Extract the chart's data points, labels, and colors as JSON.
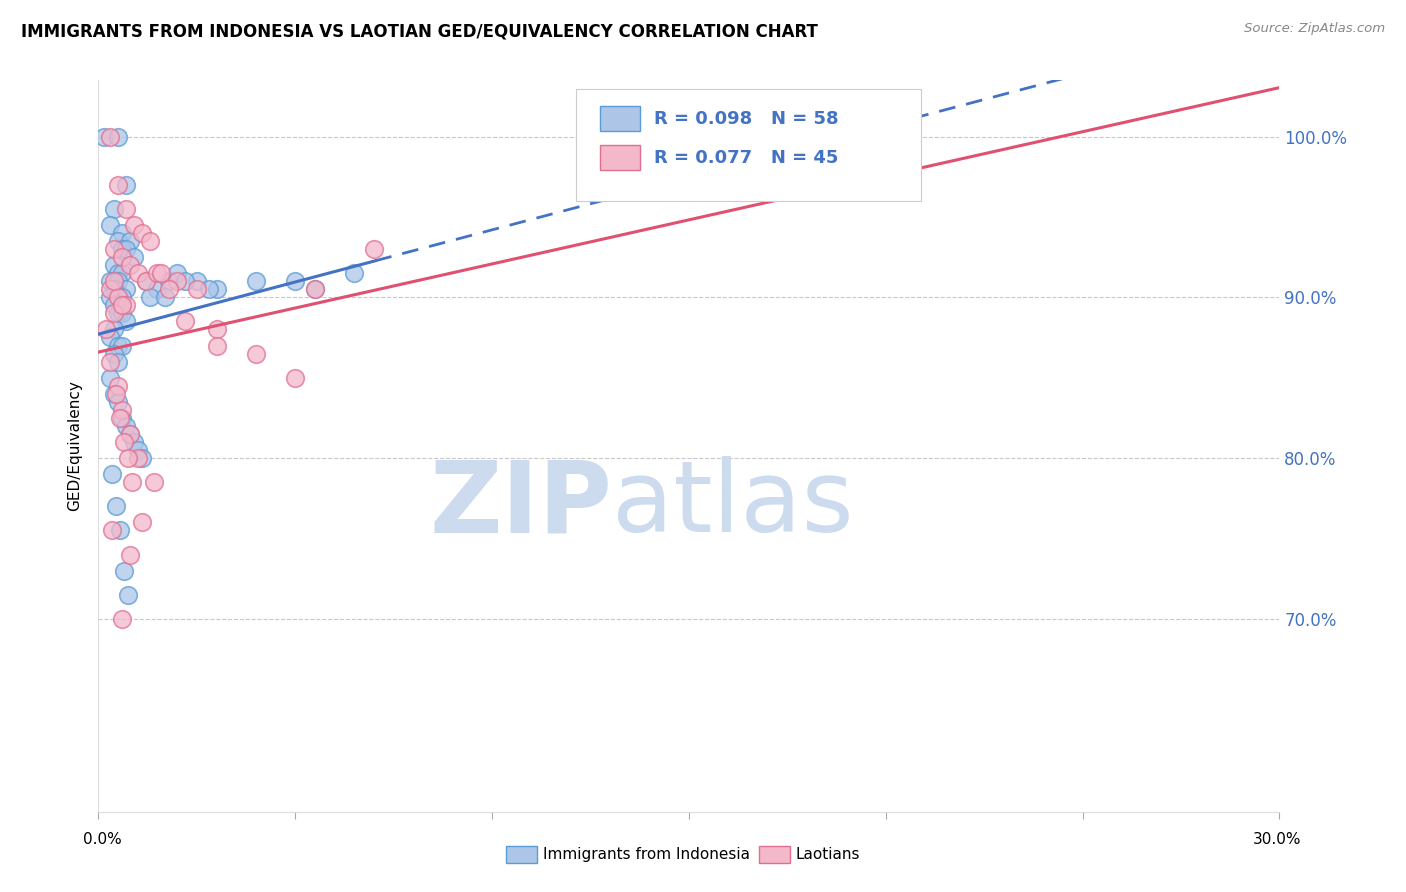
{
  "title": "IMMIGRANTS FROM INDONESIA VS LAOTIAN GED/EQUIVALENCY CORRELATION CHART",
  "source": "Source: ZipAtlas.com",
  "ylabel": "GED/Equivalency",
  "yticks": [
    100.0,
    90.0,
    80.0,
    70.0
  ],
  "ytick_labels": [
    "100.0%",
    "90.0%",
    "80.0%",
    "70.0%"
  ],
  "xmin": 0.0,
  "xmax": 30.0,
  "ymin": 58.0,
  "ymax": 103.5,
  "R_indonesia": 0.098,
  "N_indonesia": 58,
  "R_laotian": 0.077,
  "N_laotian": 45,
  "color_indonesia_fill": "#adc6e8",
  "color_indonesia_edge": "#5b9bd5",
  "color_laotian_fill": "#f4b8cb",
  "color_laotian_edge": "#e07090",
  "color_trend_indonesia": "#4472c4",
  "color_trend_laotian": "#e05070",
  "color_legend_text": "#4472c4",
  "legend_label_indonesia": "Immigrants from Indonesia",
  "legend_label_laotian": "Laotians",
  "solid_cutoff_x": 7.0,
  "indonesia_x": [
    0.15,
    0.5,
    0.7,
    0.4,
    0.3,
    0.6,
    0.5,
    0.8,
    0.6,
    0.7,
    0.9,
    0.4,
    0.5,
    0.6,
    0.3,
    0.5,
    0.7,
    0.4,
    0.6,
    0.3,
    0.4,
    0.5,
    0.6,
    0.7,
    0.4,
    0.3,
    0.5,
    0.6,
    0.4,
    0.5,
    1.2,
    1.5,
    1.8,
    2.0,
    2.5,
    3.0,
    4.0,
    5.0,
    5.5,
    6.5,
    0.3,
    0.4,
    0.5,
    0.6,
    0.7,
    0.8,
    0.9,
    1.0,
    1.1,
    0.35,
    0.45,
    0.55,
    1.3,
    2.2,
    1.7,
    2.8,
    0.65,
    0.75
  ],
  "indonesia_y": [
    100.0,
    100.0,
    97.0,
    95.5,
    94.5,
    94.0,
    93.5,
    93.5,
    93.0,
    93.0,
    92.5,
    92.0,
    91.5,
    91.5,
    91.0,
    91.0,
    90.5,
    90.5,
    90.0,
    90.0,
    89.5,
    89.0,
    89.0,
    88.5,
    88.0,
    87.5,
    87.0,
    87.0,
    86.5,
    86.0,
    91.0,
    90.5,
    91.0,
    91.5,
    91.0,
    90.5,
    91.0,
    91.0,
    90.5,
    91.5,
    85.0,
    84.0,
    83.5,
    82.5,
    82.0,
    81.5,
    81.0,
    80.5,
    80.0,
    79.0,
    77.0,
    75.5,
    90.0,
    91.0,
    90.0,
    90.5,
    73.0,
    71.5
  ],
  "laotian_x": [
    0.3,
    0.5,
    0.7,
    0.9,
    1.1,
    1.3,
    0.4,
    0.6,
    0.8,
    1.0,
    1.2,
    0.3,
    0.5,
    0.7,
    0.4,
    1.5,
    2.0,
    2.5,
    3.0,
    4.0,
    5.0,
    0.2,
    0.3,
    0.5,
    0.6,
    0.8,
    1.0,
    1.4,
    0.4,
    0.6,
    1.8,
    2.2,
    1.6,
    5.5,
    0.45,
    0.55,
    0.65,
    0.75,
    0.85,
    1.1,
    0.35,
    0.8,
    3.0,
    0.6,
    7.0
  ],
  "laotian_y": [
    100.0,
    97.0,
    95.5,
    94.5,
    94.0,
    93.5,
    93.0,
    92.5,
    92.0,
    91.5,
    91.0,
    90.5,
    90.0,
    89.5,
    89.0,
    91.5,
    91.0,
    90.5,
    88.0,
    86.5,
    85.0,
    88.0,
    86.0,
    84.5,
    83.0,
    81.5,
    80.0,
    78.5,
    91.0,
    89.5,
    90.5,
    88.5,
    91.5,
    90.5,
    84.0,
    82.5,
    81.0,
    80.0,
    78.5,
    76.0,
    75.5,
    74.0,
    87.0,
    70.0,
    93.0
  ]
}
